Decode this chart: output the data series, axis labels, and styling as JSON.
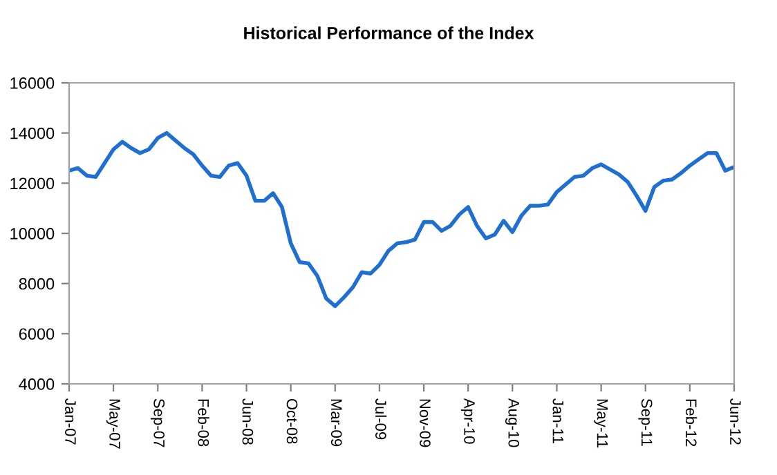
{
  "chart_data": {
    "type": "line",
    "title": "Historical Performance of the Index",
    "categories": [
      "Jan-07",
      null,
      null,
      null,
      null,
      "May-07",
      null,
      null,
      null,
      null,
      "Sep-07",
      null,
      null,
      null,
      null,
      "Feb-08",
      null,
      null,
      null,
      null,
      "Jun-08",
      null,
      null,
      null,
      null,
      "Oct-08",
      null,
      null,
      null,
      null,
      "Mar-09",
      null,
      null,
      null,
      null,
      "Jul-09",
      null,
      null,
      null,
      null,
      "Nov-09",
      null,
      null,
      null,
      null,
      "Apr-10",
      null,
      null,
      null,
      null,
      "Aug-10",
      null,
      null,
      null,
      null,
      "Jan-11",
      null,
      null,
      null,
      null,
      "May-11",
      null,
      null,
      null,
      null,
      "Sep-11",
      null,
      null,
      null,
      null,
      "Feb-12",
      null,
      null,
      null,
      null,
      "Jun-12"
    ],
    "series": [
      {
        "color": "#1f6fd0",
        "values": [
          12500,
          12600,
          12300,
          12250,
          12800,
          13350,
          13650,
          13400,
          13200,
          13350,
          13800,
          14000,
          13700,
          13400,
          13150,
          12700,
          12300,
          12250,
          12700,
          12800,
          12300,
          11300,
          11300,
          11600,
          11050,
          9600,
          8850,
          8800,
          8300,
          7400,
          7100,
          7450,
          7850,
          8450,
          8400,
          8750,
          9300,
          9600,
          9650,
          9750,
          10450,
          10450,
          10100,
          10300,
          10750,
          11050,
          10300,
          9800,
          9950,
          10500,
          10050,
          10700,
          11100,
          11100,
          11150,
          11650,
          11950,
          12250,
          12300,
          12600,
          12750,
          12550,
          12350,
          12050,
          11500,
          10900,
          11850,
          12100,
          12150,
          12400,
          12700,
          12950,
          13200,
          13200,
          12500,
          12650
        ]
      }
    ],
    "ylim": [
      4000,
      16000
    ],
    "yticks": [
      4000,
      6000,
      8000,
      10000,
      12000,
      14000,
      16000
    ],
    "grid": false,
    "marker": "none",
    "line_style": "solid"
  }
}
